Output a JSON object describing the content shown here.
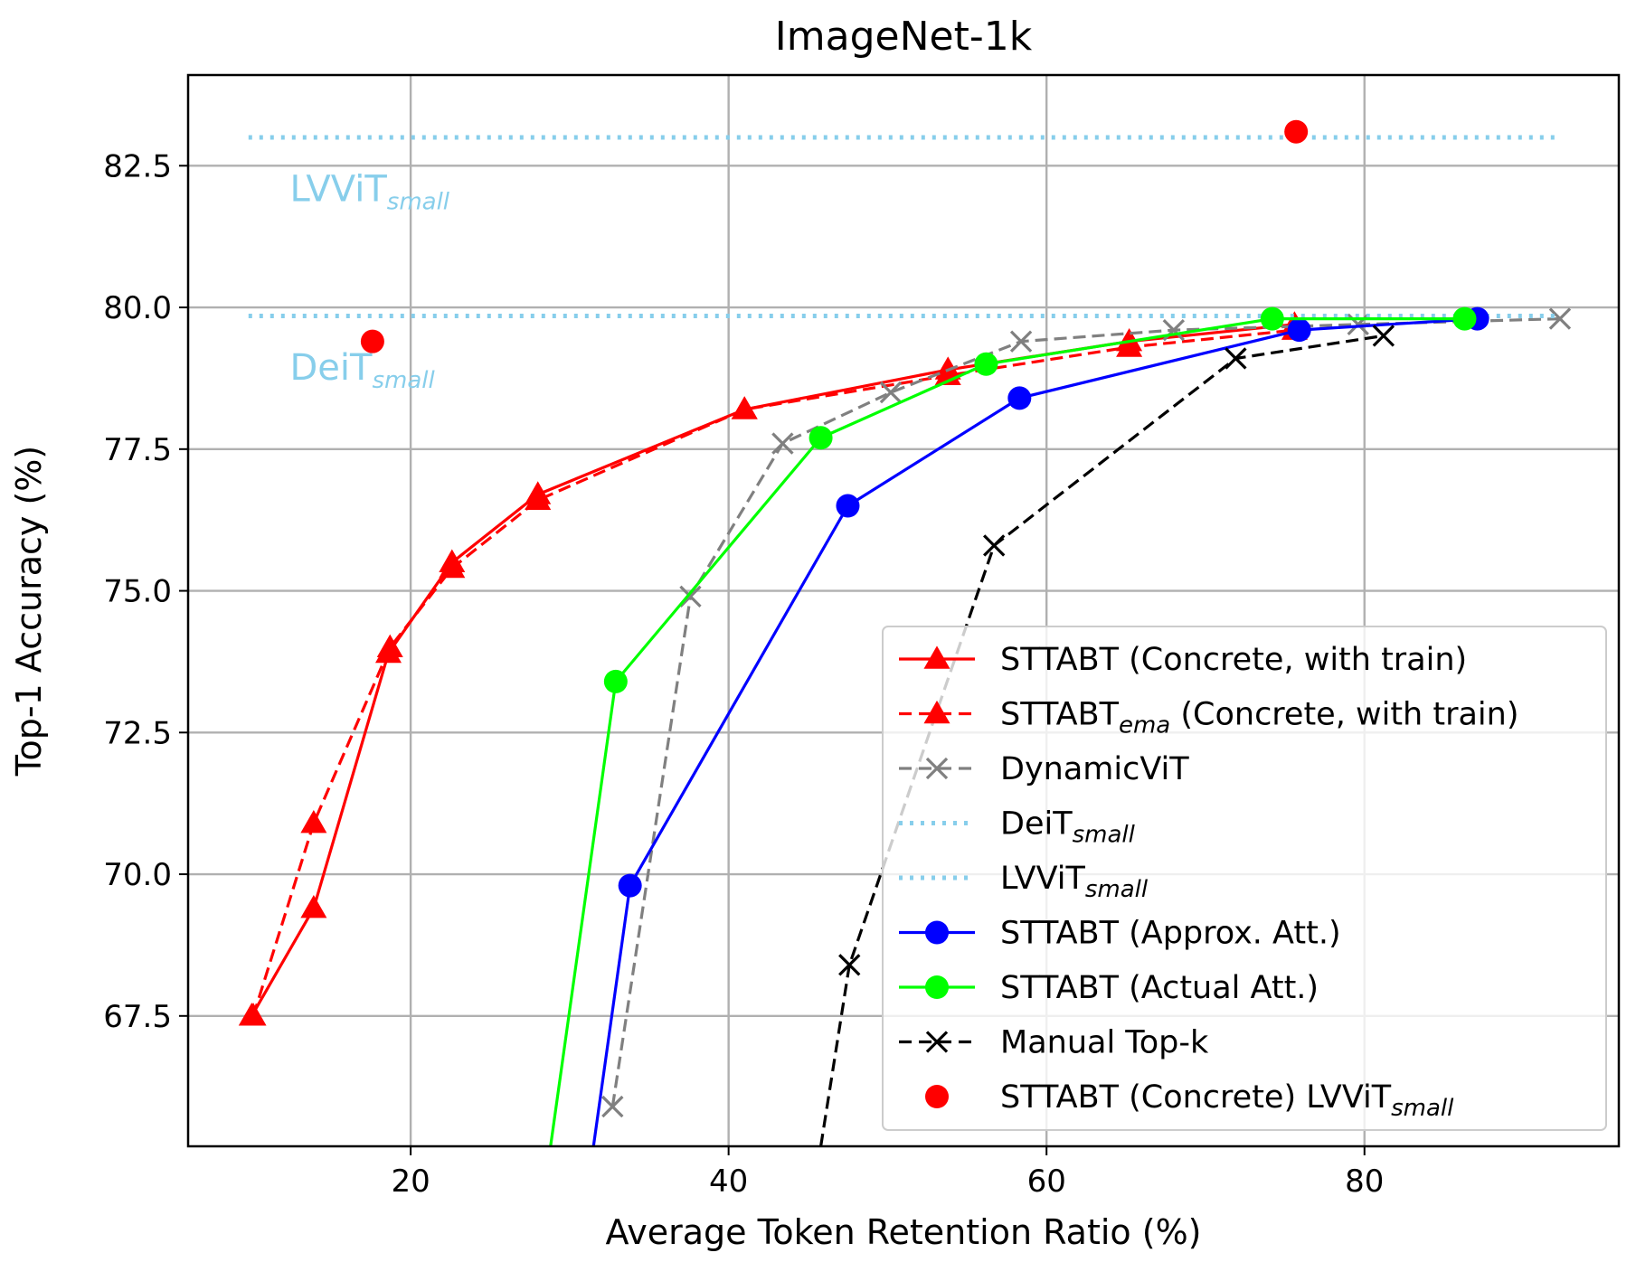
{
  "chart_data": {
    "type": "line",
    "title": "ImageNet-1k",
    "xlabel": "Average Token Retention Ratio (%)",
    "ylabel": "Top-1 Accuracy (%)",
    "xlim": [
      6,
      96
    ],
    "ylim": [
      65.2,
      84.1
    ],
    "xticks": [
      20,
      40,
      60,
      80
    ],
    "xtick_labels": [
      "20",
      "40",
      "60",
      "80"
    ],
    "yticks": [
      67.5,
      70.0,
      72.5,
      75.0,
      77.5,
      80.0,
      82.5
    ],
    "ytick_labels": [
      "67.5",
      "70.0",
      "72.5",
      "75.0",
      "77.5",
      "80.0",
      "82.5"
    ],
    "grid": true,
    "legend_position": "lower-right",
    "series": [
      {
        "name": "STTABT (Concrete, with train)",
        "name_main": "STTABT (Concrete, with train)",
        "name_sub": "",
        "name_suffix": "",
        "color": "#ff0000",
        "line_style": "solid",
        "marker": "triangle",
        "x": [
          10.0,
          13.9,
          18.6,
          22.6,
          28.0,
          41.0,
          53.8,
          65.2,
          75.6
        ],
        "y": [
          67.5,
          69.4,
          73.9,
          75.5,
          76.7,
          78.2,
          78.9,
          79.4,
          79.7
        ]
      },
      {
        "name": "STTABTema (Concrete, with train)",
        "name_main": "STTABT",
        "name_sub": "ema",
        "name_suffix": " (Concrete, with train)",
        "color": "#ff0000",
        "line_style": "dashed",
        "marker": "triangle",
        "x": [
          10.1,
          13.9,
          18.7,
          22.6,
          28.0,
          41.0,
          53.8,
          65.2,
          75.6
        ],
        "y": [
          67.5,
          70.9,
          74.0,
          75.4,
          76.6,
          78.2,
          78.8,
          79.3,
          79.6
        ]
      },
      {
        "name": "DynamicViT",
        "name_main": "DynamicViT",
        "name_sub": "",
        "name_suffix": "",
        "color": "#808080",
        "line_style": "dashed",
        "marker": "x",
        "x": [
          32.7,
          37.6,
          43.4,
          50.2,
          58.4,
          68.0,
          79.6,
          92.3
        ],
        "y": [
          65.9,
          74.9,
          77.6,
          78.5,
          79.4,
          79.6,
          79.7,
          79.8
        ]
      },
      {
        "name": "DeiTsmall",
        "name_main": "DeiT",
        "name_sub": "small",
        "name_suffix": "",
        "color": "#87ceeb",
        "line_style": "dotted",
        "marker": "none",
        "x": [
          9.8,
          92.0
        ],
        "y": [
          79.85,
          79.85
        ]
      },
      {
        "name": "LVViTsmall",
        "name_main": "LVViT",
        "name_sub": "small",
        "name_suffix": "",
        "color": "#87ceeb",
        "line_style": "dotted",
        "marker": "none",
        "x": [
          9.8,
          92.0
        ],
        "y": [
          83.0,
          83.0
        ]
      },
      {
        "name": "STTABT (Approx. Att.)",
        "name_main": "STTABT (Approx. Att.)",
        "name_sub": "",
        "name_suffix": "",
        "color": "#0000ff",
        "line_style": "solid",
        "marker": "circle",
        "x": [
          31.5,
          33.8,
          47.5,
          58.3,
          75.9,
          87.1
        ],
        "y": [
          65.2,
          69.8,
          76.5,
          78.4,
          79.6,
          79.8
        ]
      },
      {
        "name": "STTABT (Actual Att.)",
        "name_main": "STTABT (Actual Att.)",
        "name_sub": "",
        "name_suffix": "",
        "color": "#00ff00",
        "line_style": "solid",
        "marker": "circle",
        "x": [
          28.8,
          32.9,
          45.8,
          56.2,
          74.2,
          86.3
        ],
        "y": [
          65.2,
          73.4,
          77.7,
          79.0,
          79.8,
          79.8
        ]
      },
      {
        "name": "Manual Top-k",
        "name_main": "Manual Top-k",
        "name_sub": "",
        "name_suffix": "",
        "color": "#000000",
        "line_style": "dashed",
        "marker": "x",
        "x": [
          45.8,
          47.6,
          56.7,
          71.9,
          81.2
        ],
        "y": [
          65.2,
          68.4,
          75.8,
          79.1,
          79.5
        ]
      },
      {
        "name": "STTABT (Concrete) LVViTsmall",
        "name_main": "STTABT (Concrete) LVViT",
        "name_sub": "small",
        "name_suffix": "",
        "color": "#ff0000",
        "line_style": "none",
        "marker": "circle",
        "x": [
          17.6,
          75.7
        ],
        "y": [
          79.4,
          83.1
        ]
      }
    ],
    "annotations": [
      {
        "main": "LVViT",
        "sub": "small",
        "color": "#87ceeb",
        "x": 12.4,
        "y": 82.1
      },
      {
        "main": "DeiT",
        "sub": "small",
        "color": "#87ceeb",
        "x": 12.4,
        "y": 78.95
      }
    ]
  }
}
